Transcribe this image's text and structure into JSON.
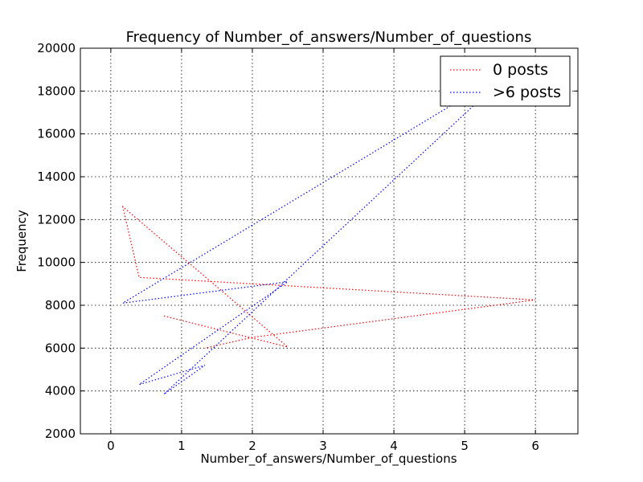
{
  "chart_data": {
    "type": "line",
    "title": "Frequency of Number_of_answers/Number_of_questions",
    "xlabel": "Number_of_answers/Number_of_questions",
    "ylabel": "Frequency",
    "xlim": [
      -0.43,
      6.6
    ],
    "ylim": [
      2000,
      20000
    ],
    "xticks": [
      0,
      1,
      2,
      3,
      4,
      5,
      6
    ],
    "xtick_labels": [
      "0",
      "1",
      "2",
      "3",
      "4",
      "5",
      "6"
    ],
    "yticks": [
      2000,
      4000,
      6000,
      8000,
      10000,
      12000,
      14000,
      16000,
      18000,
      20000
    ],
    "ytick_labels": [
      "2000",
      "4000",
      "6000",
      "8000",
      "10000",
      "12000",
      "14000",
      "16000",
      "18000",
      "20000"
    ],
    "grid": true,
    "legend_position": "top-right",
    "series": [
      {
        "name": "0 posts",
        "color": "#ff0000",
        "linestyle": "dotted",
        "x": [
          0.75,
          2.5,
          0.17,
          0.4,
          6.0,
          2.0,
          1.33
        ],
        "y": [
          7500,
          6050,
          12600,
          9300,
          8250,
          6500,
          6000
        ]
      },
      {
        "name": ">6 posts",
        "color": "#0000ff",
        "linestyle": "dotted",
        "x": [
          5.5,
          0.17,
          2.5,
          0.4,
          1.33,
          0.75,
          5.25
        ],
        "y": [
          18700,
          8100,
          9100,
          4300,
          5200,
          3850,
          17700
        ]
      }
    ]
  }
}
